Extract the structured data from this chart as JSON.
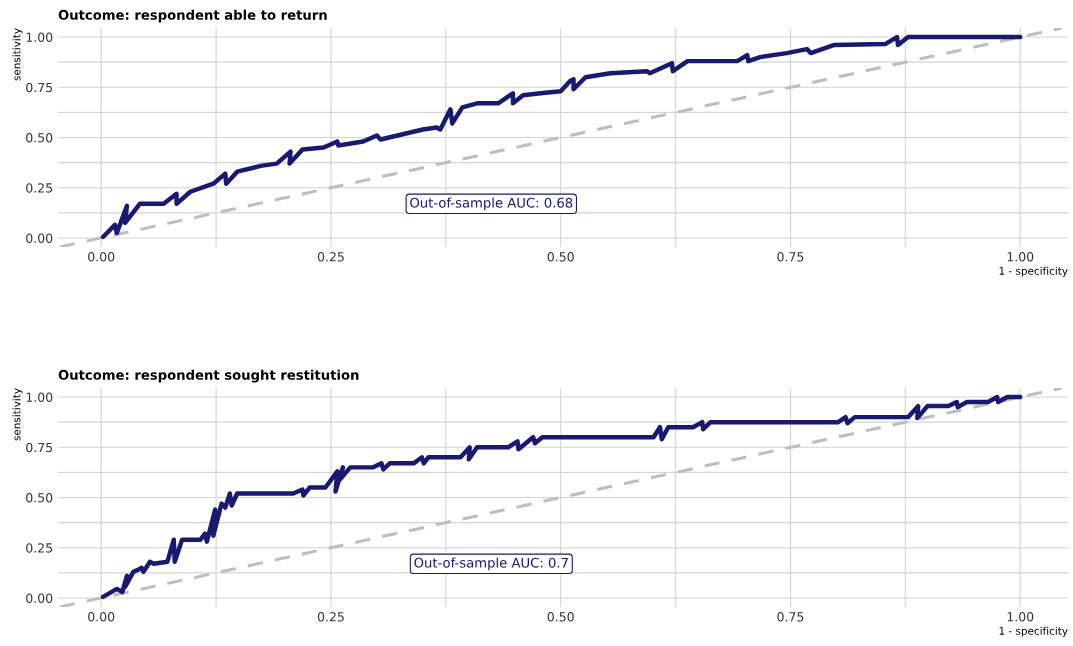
{
  "chart_data": [
    {
      "type": "line",
      "title": "Outcome: respondent able to return",
      "xlabel": "1 - specificity",
      "ylabel": "sensitivity",
      "xlim": [
        -0.047,
        1.052
      ],
      "ylim": [
        -0.045,
        1.045
      ],
      "xticks": [
        {
          "value": 0,
          "label": "0.00"
        },
        {
          "value": 0.125,
          "label": null
        },
        {
          "value": 0.25,
          "label": "0.25"
        },
        {
          "value": 0.375,
          "label": null
        },
        {
          "value": 0.5,
          "label": "0.50"
        },
        {
          "value": 0.625,
          "label": null
        },
        {
          "value": 0.75,
          "label": "0.75"
        },
        {
          "value": 0.875,
          "label": null
        },
        {
          "value": 1,
          "label": "1.00"
        }
      ],
      "yticks": [
        {
          "value": 0,
          "label": "0.00"
        },
        {
          "value": 0.125,
          "label": null
        },
        {
          "value": 0.25,
          "label": "0.25"
        },
        {
          "value": 0.375,
          "label": null
        },
        {
          "value": 0.5,
          "label": "0.50"
        },
        {
          "value": 0.625,
          "label": null
        },
        {
          "value": 0.75,
          "label": "0.75"
        },
        {
          "value": 0.875,
          "label": null
        },
        {
          "value": 1,
          "label": "1.00"
        }
      ],
      "grid": true,
      "legend": false,
      "series": [
        {
          "color": "#bebebe",
          "line_style": "dashed",
          "x": [
            -0.045,
            1.045
          ],
          "values": [
            -0.045,
            1.045
          ]
        },
        {
          "color": "#191970",
          "line_style": "solid",
          "x": [
            0.002,
            0.015,
            0.017,
            0.028,
            0.026,
            0.042,
            0.068,
            0.082,
            0.082,
            0.097,
            0.122,
            0.135,
            0.136,
            0.148,
            0.175,
            0.191,
            0.206,
            0.205,
            0.219,
            0.242,
            0.257,
            0.258,
            0.285,
            0.3,
            0.304,
            0.35,
            0.365,
            0.369,
            0.38,
            0.382,
            0.393,
            0.409,
            0.432,
            0.448,
            0.448,
            0.459,
            0.478,
            0.5,
            0.51,
            0.514,
            0.514,
            0.527,
            0.554,
            0.594,
            0.597,
            0.621,
            0.622,
            0.638,
            0.692,
            0.703,
            0.704,
            0.717,
            0.746,
            0.768,
            0.772,
            0.797,
            0.853,
            0.866,
            0.867,
            0.878,
            1.0
          ],
          "values": [
            0.005,
            0.065,
            0.025,
            0.16,
            0.075,
            0.17,
            0.17,
            0.22,
            0.17,
            0.23,
            0.27,
            0.32,
            0.27,
            0.33,
            0.36,
            0.37,
            0.43,
            0.37,
            0.44,
            0.45,
            0.48,
            0.46,
            0.48,
            0.51,
            0.49,
            0.54,
            0.55,
            0.54,
            0.64,
            0.57,
            0.65,
            0.67,
            0.67,
            0.72,
            0.67,
            0.71,
            0.72,
            0.73,
            0.78,
            0.79,
            0.74,
            0.8,
            0.82,
            0.83,
            0.82,
            0.87,
            0.83,
            0.88,
            0.88,
            0.91,
            0.88,
            0.9,
            0.92,
            0.94,
            0.92,
            0.96,
            0.965,
            1.0,
            0.96,
            1.0,
            1.0
          ]
        }
      ],
      "annotations": [
        "Out-of-sample AUC: 0.68"
      ]
    },
    {
      "type": "line",
      "title": "Outcome: respondent sought restitution",
      "xlabel": "1 - specificity",
      "ylabel": "sensitivity",
      "xlim": [
        -0.047,
        1.052
      ],
      "ylim": [
        -0.045,
        1.045
      ],
      "xticks": [
        {
          "value": 0,
          "label": "0.00"
        },
        {
          "value": 0.125,
          "label": null
        },
        {
          "value": 0.25,
          "label": "0.25"
        },
        {
          "value": 0.375,
          "label": null
        },
        {
          "value": 0.5,
          "label": "0.50"
        },
        {
          "value": 0.625,
          "label": null
        },
        {
          "value": 0.75,
          "label": "0.75"
        },
        {
          "value": 0.875,
          "label": null
        },
        {
          "value": 1,
          "label": "1.00"
        }
      ],
      "yticks": [
        {
          "value": 0,
          "label": "0.00"
        },
        {
          "value": 0.125,
          "label": null
        },
        {
          "value": 0.25,
          "label": "0.25"
        },
        {
          "value": 0.375,
          "label": null
        },
        {
          "value": 0.5,
          "label": "0.50"
        },
        {
          "value": 0.625,
          "label": null
        },
        {
          "value": 0.75,
          "label": "0.75"
        },
        {
          "value": 0.875,
          "label": null
        },
        {
          "value": 1,
          "label": "1.00"
        }
      ],
      "grid": true,
      "legend": false,
      "series": [
        {
          "color": "#bebebe",
          "line_style": "dashed",
          "x": [
            -0.045,
            1.045
          ],
          "values": [
            -0.045,
            1.045
          ]
        },
        {
          "color": "#191970",
          "line_style": "solid",
          "x": [
            0.002,
            0.017,
            0.023,
            0.028,
            0.026,
            0.035,
            0.04,
            0.044,
            0.046,
            0.053,
            0.057,
            0.072,
            0.079,
            0.08,
            0.088,
            0.108,
            0.113,
            0.115,
            0.124,
            0.122,
            0.131,
            0.135,
            0.14,
            0.142,
            0.148,
            0.209,
            0.219,
            0.22,
            0.227,
            0.244,
            0.257,
            0.255,
            0.263,
            0.26,
            0.271,
            0.296,
            0.305,
            0.307,
            0.314,
            0.34,
            0.349,
            0.351,
            0.356,
            0.391,
            0.401,
            0.4,
            0.409,
            0.443,
            0.453,
            0.454,
            0.47,
            0.472,
            0.48,
            0.601,
            0.608,
            0.61,
            0.617,
            0.644,
            0.654,
            0.655,
            0.663,
            0.802,
            0.81,
            0.812,
            0.82,
            0.878,
            0.889,
            0.888,
            0.899,
            0.922,
            0.931,
            0.932,
            0.942,
            0.965,
            0.975,
            0.976,
            0.986,
            1.0
          ],
          "values": [
            0.005,
            0.045,
            0.03,
            0.11,
            0.055,
            0.13,
            0.14,
            0.15,
            0.13,
            0.18,
            0.17,
            0.18,
            0.29,
            0.18,
            0.29,
            0.29,
            0.32,
            0.28,
            0.44,
            0.31,
            0.47,
            0.45,
            0.52,
            0.46,
            0.52,
            0.52,
            0.54,
            0.51,
            0.55,
            0.55,
            0.63,
            0.53,
            0.65,
            0.59,
            0.65,
            0.65,
            0.67,
            0.64,
            0.67,
            0.67,
            0.7,
            0.67,
            0.7,
            0.7,
            0.75,
            0.69,
            0.75,
            0.75,
            0.78,
            0.74,
            0.8,
            0.77,
            0.8,
            0.8,
            0.85,
            0.79,
            0.85,
            0.85,
            0.875,
            0.84,
            0.875,
            0.875,
            0.9,
            0.87,
            0.9,
            0.9,
            0.955,
            0.895,
            0.955,
            0.955,
            0.975,
            0.95,
            0.975,
            0.975,
            1.0,
            0.975,
            1.0,
            1.0
          ]
        }
      ],
      "annotations": [
        "Out-of-sample AUC: 0.7"
      ]
    }
  ]
}
